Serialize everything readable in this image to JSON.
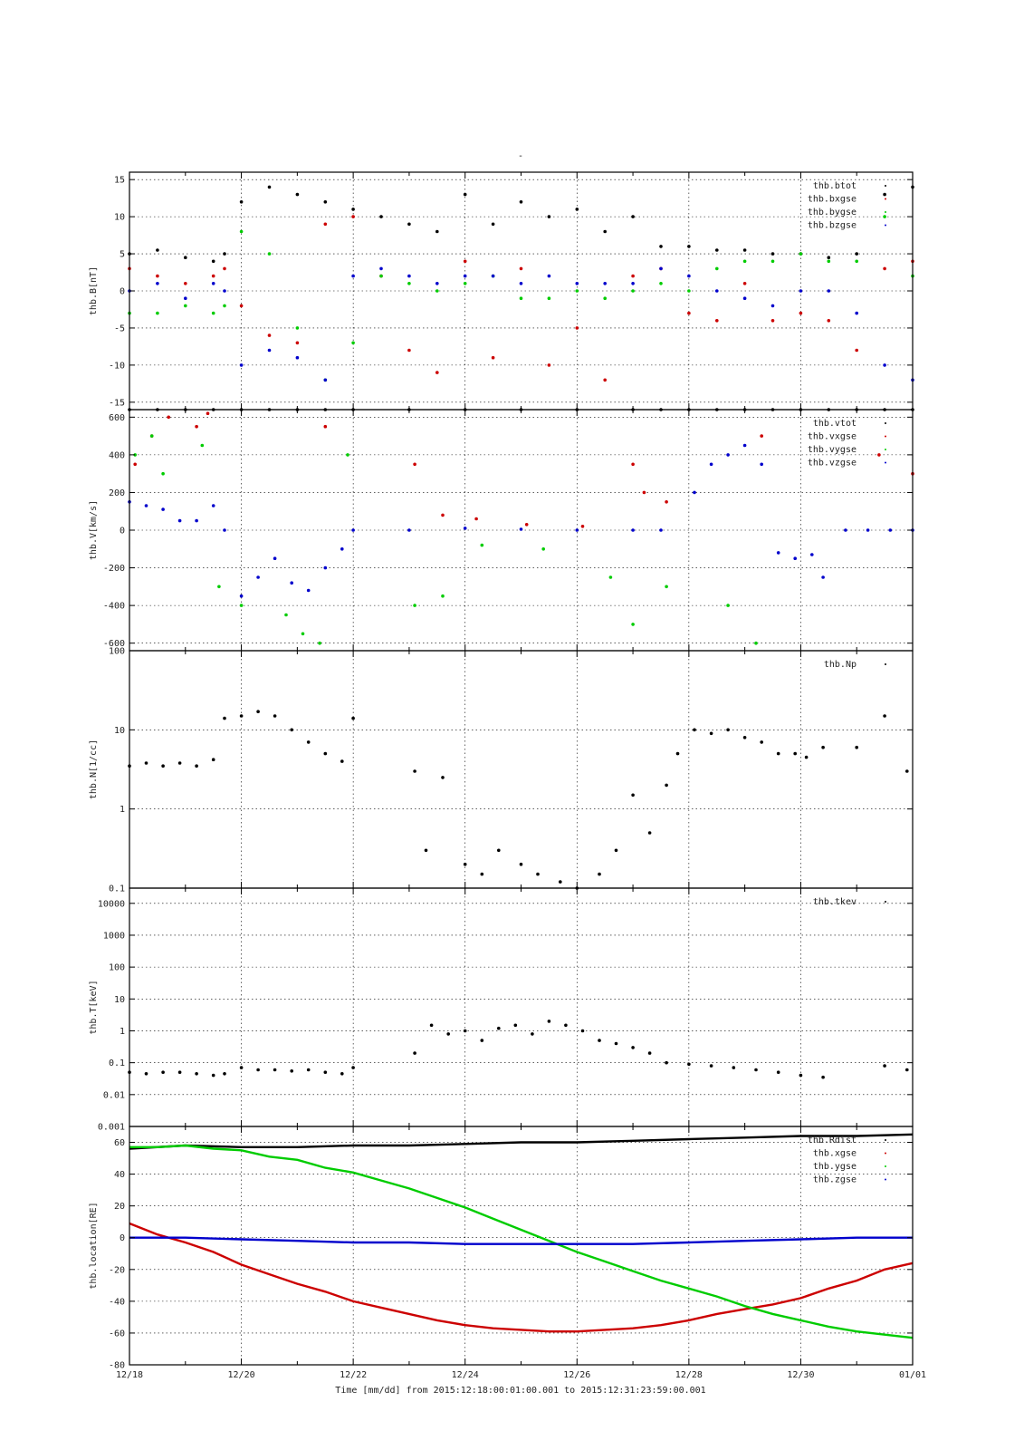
{
  "figure": {
    "title": "-",
    "footer": "Time [mm/dd]  from 2015:12:18:00:01:00.001  to  2015:12:31:23:59:00.001"
  },
  "x_axis": {
    "range_days": [
      18,
      32
    ],
    "tick_labels": [
      "12/18",
      "12/20",
      "12/22",
      "12/24",
      "12/26",
      "12/28",
      "12/30",
      "01/01"
    ],
    "tick_values": [
      18,
      20,
      22,
      24,
      26,
      28,
      30,
      32
    ]
  },
  "colors": {
    "black": "#000000",
    "red": "#cc0000",
    "green": "#00cc00",
    "blue": "#0000cc"
  },
  "chart_data": [
    {
      "type": "scatter",
      "ylabel": "thb.B[nT]",
      "ylim": [
        -16,
        16
      ],
      "yticks": [
        -15,
        -10,
        -5,
        0,
        5,
        10,
        15
      ],
      "ytick_labels": [
        "-15",
        "-10",
        "-5",
        "0",
        "5",
        "10",
        "15"
      ],
      "grid": true,
      "legend_placement": "top-right",
      "series": [
        {
          "name": "thb.btot",
          "color": "#000000",
          "x": [
            18.0,
            18.5,
            19.0,
            19.5,
            19.7,
            20.0,
            20.5,
            21.0,
            21.5,
            22.0,
            22.5,
            23.0,
            23.5,
            24.0,
            24.5,
            25.0,
            25.5,
            26.0,
            26.5,
            27.0,
            27.5,
            28.0,
            28.5,
            29.0,
            29.5,
            30.0,
            30.5,
            31.0,
            31.5,
            32.0
          ],
          "y": [
            5,
            5.5,
            4.5,
            4,
            5,
            12,
            14,
            13,
            12,
            11,
            10,
            9,
            8,
            13,
            9,
            12,
            10,
            11,
            8,
            10,
            6,
            6,
            5.5,
            5.5,
            5,
            5,
            4.5,
            5,
            13,
            14
          ]
        },
        {
          "name": "thb.bxgse",
          "color": "#cc0000",
          "x": [
            18.0,
            18.5,
            19.0,
            19.5,
            19.7,
            20.0,
            20.5,
            21.0,
            21.5,
            22.0,
            22.5,
            23.0,
            23.5,
            24.0,
            24.5,
            25.0,
            25.5,
            26.0,
            26.5,
            27.0,
            27.5,
            28.0,
            28.5,
            29.0,
            29.5,
            30.0,
            30.5,
            31.0,
            31.5,
            32.0
          ],
          "y": [
            3,
            2,
            1,
            2,
            3,
            -2,
            -6,
            -7,
            9,
            10,
            2,
            -8,
            -11,
            4,
            -9,
            3,
            -10,
            -5,
            -12,
            2,
            3,
            -3,
            -4,
            1,
            -4,
            -3,
            -4,
            -8,
            3,
            4
          ]
        },
        {
          "name": "thb.bygse",
          "color": "#00cc00",
          "x": [
            18.0,
            18.5,
            19.0,
            19.5,
            19.7,
            20.0,
            20.5,
            21.0,
            21.5,
            22.0,
            22.5,
            23.0,
            23.5,
            24.0,
            24.5,
            25.0,
            25.5,
            26.0,
            26.5,
            27.0,
            27.5,
            28.0,
            28.5,
            29.0,
            29.5,
            30.0,
            30.5,
            31.0,
            31.5,
            32.0
          ],
          "y": [
            -3,
            -3,
            -2,
            -3,
            -2,
            8,
            5,
            -5,
            -12,
            -7,
            2,
            1,
            0,
            1,
            2,
            -1,
            -1,
            0,
            -1,
            0,
            1,
            0,
            3,
            4,
            4,
            5,
            4,
            4,
            10,
            2
          ]
        },
        {
          "name": "thb.bzgse",
          "color": "#0000cc",
          "x": [
            18.0,
            18.5,
            19.0,
            19.5,
            19.7,
            20.0,
            20.5,
            21.0,
            21.5,
            22.0,
            22.5,
            23.0,
            23.5,
            24.0,
            24.5,
            25.0,
            25.5,
            26.0,
            26.5,
            27.0,
            27.5,
            28.0,
            28.5,
            29.0,
            29.5,
            30.0,
            30.5,
            31.0,
            31.5,
            32.0
          ],
          "y": [
            0,
            1,
            -1,
            1,
            0,
            -10,
            -8,
            -9,
            -12,
            2,
            3,
            2,
            1,
            2,
            2,
            1,
            2,
            1,
            1,
            1,
            3,
            2,
            0,
            -1,
            -2,
            0,
            0,
            -3,
            -10,
            -12
          ]
        }
      ]
    },
    {
      "type": "scatter",
      "ylabel": "thb.V[km/s]",
      "ylim": [
        -640,
        640
      ],
      "yticks": [
        -600,
        -400,
        -200,
        0,
        200,
        400,
        600
      ],
      "ytick_labels": [
        "-600",
        "-400",
        "-200",
        "0",
        "200",
        "400",
        "600"
      ],
      "grid": true,
      "legend_placement": "top-right",
      "series": [
        {
          "name": "thb.vtot",
          "color": "#000000",
          "x": [
            18.0,
            18.5,
            19.0,
            19.5,
            20.0,
            20.5,
            21.0,
            21.5,
            22.0,
            23.0,
            24.0,
            25.0,
            26.0,
            27.0,
            27.5,
            28.0,
            28.5,
            29.0,
            29.5,
            30.0,
            30.5,
            31.0,
            31.5,
            32.0
          ],
          "y": [
            640,
            640,
            640,
            640,
            640,
            640,
            640,
            640,
            640,
            640,
            640,
            640,
            640,
            640,
            640,
            640,
            640,
            640,
            640,
            640,
            640,
            640,
            640,
            640
          ]
        },
        {
          "name": "thb.vxgse",
          "color": "#cc0000",
          "x": [
            18.1,
            18.4,
            18.7,
            19.2,
            19.4,
            21.5,
            23.1,
            23.6,
            24.2,
            25.1,
            26.1,
            27.0,
            27.2,
            27.6,
            29.3,
            31.4,
            32.0
          ],
          "y": [
            350,
            500,
            600,
            550,
            620,
            550,
            350,
            80,
            60,
            30,
            20,
            350,
            200,
            150,
            500,
            400,
            300
          ]
        },
        {
          "name": "thb.vygse",
          "color": "#00cc00",
          "x": [
            18.1,
            18.4,
            18.6,
            19.3,
            19.6,
            20.0,
            20.8,
            21.1,
            21.4,
            21.9,
            23.1,
            23.6,
            24.3,
            25.4,
            26.6,
            27.0,
            27.6,
            28.7,
            29.2
          ],
          "y": [
            400,
            500,
            300,
            450,
            -300,
            -400,
            -450,
            -550,
            -600,
            400,
            -400,
            -350,
            -80,
            -100,
            -250,
            -500,
            -300,
            -400,
            -600
          ]
        },
        {
          "name": "thb.vzgse",
          "color": "#0000cc",
          "x": [
            18.0,
            18.3,
            18.6,
            18.9,
            19.2,
            19.5,
            19.7,
            20.0,
            20.3,
            20.6,
            20.9,
            21.2,
            21.5,
            21.8,
            22.0,
            23.0,
            24.0,
            25.0,
            26.0,
            27.0,
            27.5,
            28.1,
            28.4,
            28.7,
            29.0,
            29.3,
            29.6,
            29.9,
            30.2,
            30.4,
            30.8,
            31.2,
            31.6,
            32.0
          ],
          "y": [
            150,
            130,
            110,
            50,
            50,
            130,
            0,
            -350,
            -250,
            -150,
            -280,
            -320,
            -200,
            -100,
            0,
            0,
            10,
            5,
            0,
            0,
            0,
            200,
            350,
            400,
            450,
            350,
            -120,
            -150,
            -130,
            -250,
            0,
            0,
            0,
            0
          ]
        }
      ]
    },
    {
      "type": "scatter",
      "ylabel": "thb.N[1/cc]",
      "yscale": "log",
      "ylim": [
        0.1,
        100
      ],
      "yticks": [
        0.1,
        1,
        10,
        100
      ],
      "ytick_labels": [
        "0.1",
        "1",
        "10",
        "100"
      ],
      "grid": true,
      "legend_placement": "top-right",
      "series": [
        {
          "name": "thb.Np",
          "color": "#000000",
          "x": [
            18.0,
            18.3,
            18.6,
            18.9,
            19.2,
            19.5,
            19.7,
            20.0,
            20.3,
            20.6,
            20.9,
            21.2,
            21.5,
            21.8,
            22.0,
            23.1,
            23.3,
            23.6,
            24.0,
            24.3,
            24.6,
            25.0,
            25.3,
            25.7,
            26.0,
            26.4,
            26.7,
            27.0,
            27.3,
            27.6,
            27.8,
            28.1,
            28.4,
            28.7,
            29.0,
            29.3,
            29.6,
            29.9,
            30.1,
            30.4,
            31.0,
            31.5,
            31.9
          ],
          "y": [
            3.5,
            3.8,
            3.5,
            3.8,
            3.5,
            4.2,
            14,
            15,
            17,
            15,
            10,
            7,
            5,
            4,
            14,
            3,
            0.3,
            2.5,
            0.2,
            0.15,
            0.3,
            0.2,
            0.15,
            0.12,
            0.1,
            0.15,
            0.3,
            1.5,
            0.5,
            2,
            5,
            10,
            9,
            10,
            8,
            7,
            5,
            5,
            4.5,
            6,
            6,
            15,
            3
          ]
        }
      ]
    },
    {
      "type": "scatter",
      "ylabel": "thb.T[keV]",
      "yscale": "log",
      "ylim": [
        0.001,
        30000
      ],
      "yticks": [
        0.001,
        0.01,
        0.1,
        1,
        10,
        100,
        1000,
        10000
      ],
      "ytick_labels": [
        "0.001",
        "0.01",
        "0.1",
        "1",
        "10",
        "100",
        "1000",
        "10000"
      ],
      "grid": true,
      "legend_placement": "top-right",
      "series": [
        {
          "name": "thb.tkev",
          "color": "#000000",
          "x": [
            18.0,
            18.3,
            18.6,
            18.9,
            19.2,
            19.5,
            19.7,
            20.0,
            20.3,
            20.6,
            20.9,
            21.2,
            21.5,
            21.8,
            22.0,
            23.1,
            23.4,
            23.7,
            24.0,
            24.3,
            24.6,
            24.9,
            25.2,
            25.5,
            25.8,
            26.1,
            26.4,
            26.7,
            27.0,
            27.3,
            27.6,
            28.0,
            28.4,
            28.8,
            29.2,
            29.6,
            30.0,
            30.4,
            31.5,
            31.9
          ],
          "y": [
            0.05,
            0.045,
            0.05,
            0.05,
            0.045,
            0.04,
            0.045,
            0.07,
            0.06,
            0.06,
            0.055,
            0.06,
            0.05,
            0.045,
            0.07,
            0.2,
            1.5,
            0.8,
            1.0,
            0.5,
            1.2,
            1.5,
            0.8,
            2.0,
            1.5,
            1.0,
            0.5,
            0.4,
            0.3,
            0.2,
            0.1,
            0.09,
            0.08,
            0.07,
            0.06,
            0.05,
            0.04,
            0.035,
            0.08,
            0.06
          ]
        }
      ]
    },
    {
      "type": "line",
      "ylabel": "thb.location[RE]",
      "ylim": [
        -80,
        70
      ],
      "yticks": [
        -80,
        -60,
        -40,
        -20,
        0,
        20,
        40,
        60
      ],
      "ytick_labels": [
        "-80",
        "-60",
        "-40",
        "-20",
        "0",
        "20",
        "40",
        "60"
      ],
      "grid": true,
      "legend_placement": "top-right",
      "series": [
        {
          "name": "thb.Rdist",
          "color": "#000000",
          "x": [
            18.0,
            19.0,
            20.0,
            21.0,
            22.0,
            23.0,
            24.0,
            25.0,
            26.0,
            27.0,
            28.0,
            29.0,
            30.0,
            31.0,
            32.0
          ],
          "y": [
            56,
            58,
            57,
            57,
            58,
            58,
            59,
            60,
            60,
            61,
            62,
            63,
            64,
            64,
            65
          ]
        },
        {
          "name": "thb.xgse",
          "color": "#cc0000",
          "x": [
            18.0,
            18.5,
            19.0,
            19.5,
            20.0,
            20.5,
            21.0,
            21.5,
            22.0,
            22.5,
            23.0,
            23.5,
            24.0,
            24.5,
            25.0,
            25.5,
            26.0,
            26.5,
            27.0,
            27.5,
            28.0,
            28.5,
            29.0,
            29.5,
            30.0,
            30.5,
            31.0,
            31.5,
            32.0
          ],
          "y": [
            9,
            2,
            -3,
            -9,
            -17,
            -23,
            -29,
            -34,
            -40,
            -44,
            -48,
            -52,
            -55,
            -57,
            -58,
            -59,
            -59,
            -58,
            -57,
            -55,
            -52,
            -48,
            -45,
            -42,
            -38,
            -32,
            -27,
            -20,
            -16
          ]
        },
        {
          "name": "thb.ygse",
          "color": "#00cc00",
          "x": [
            18.0,
            18.5,
            19.0,
            19.5,
            20.0,
            20.5,
            21.0,
            21.5,
            22.0,
            22.5,
            23.0,
            23.5,
            24.0,
            24.5,
            25.0,
            25.5,
            26.0,
            26.5,
            27.0,
            27.5,
            28.0,
            28.5,
            29.0,
            29.5,
            30.0,
            30.5,
            31.0,
            31.5,
            32.0
          ],
          "y": [
            57,
            57,
            58,
            56,
            55,
            51,
            49,
            44,
            41,
            36,
            31,
            25,
            19,
            12,
            5,
            -2,
            -9,
            -15,
            -21,
            -27,
            -32,
            -37,
            -43,
            -48,
            -52,
            -56,
            -59,
            -61,
            -63
          ]
        },
        {
          "name": "thb.zgse",
          "color": "#0000cc",
          "x": [
            18.0,
            19.0,
            20.0,
            21.0,
            22.0,
            23.0,
            24.0,
            25.0,
            26.0,
            27.0,
            28.0,
            29.0,
            30.0,
            31.0,
            32.0
          ],
          "y": [
            0,
            0,
            -1,
            -2,
            -3,
            -3,
            -4,
            -4,
            -4,
            -4,
            -3,
            -2,
            -1,
            0,
            0
          ]
        }
      ]
    }
  ]
}
